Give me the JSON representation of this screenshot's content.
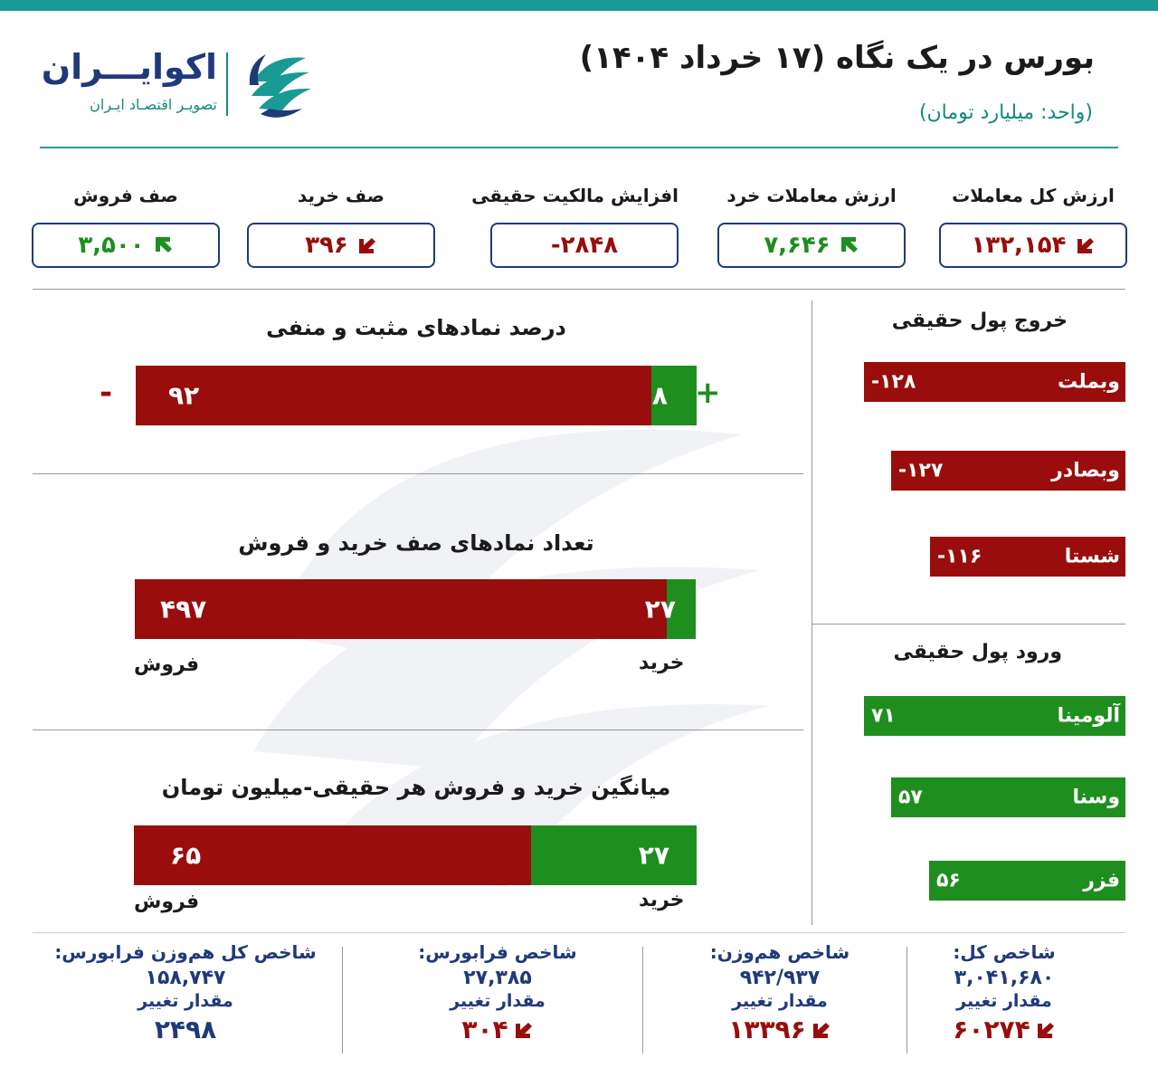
{
  "header": {
    "title": "بورس در یک نگاه (۱۷ خرداد ۱۴۰۴)",
    "unit": "(واحد: میلیارد تومان)"
  },
  "logo": {
    "name": "اکوایـــران",
    "subtitle": "تصویـر اقتصـاد ایـران"
  },
  "colors": {
    "teal": "#1a9a94",
    "navy": "#1f3a7a",
    "red": "#990d0d",
    "green": "#1e8e1e"
  },
  "kpis": [
    {
      "label": "ارزش کل معاملات",
      "value": "۱۳۲,۱۵۴",
      "trend": "down",
      "color": "#990d0d"
    },
    {
      "label": "ارزش معاملات خرد",
      "value": "۷,۶۴۶",
      "trend": "up",
      "color": "#1e8e1e"
    },
    {
      "label": "افزایش مالکیت حقیقی",
      "value": "-۲۸۴۸",
      "trend": "none",
      "color": "#990d0d"
    },
    {
      "label": "صف خرید",
      "value": "۳۹۶",
      "trend": "down",
      "color": "#990d0d"
    },
    {
      "label": "صف فروش",
      "value": "۳,۵۰۰",
      "trend": "up",
      "color": "#1e8e1e"
    }
  ],
  "positive_negative": {
    "title": "درصد نمادهای مثبت و منفی",
    "positive": 8,
    "negative": 92,
    "positive_label": "۸",
    "negative_label": "۹۲",
    "plus_sign": "+",
    "minus_sign": "-"
  },
  "queues": {
    "title": "تعداد نمادهای صف خرید و فروش",
    "buy": 27,
    "sell": 497,
    "buy_label": "۲۷",
    "sell_label": "۴۹۷",
    "buy_caption": "خرید",
    "sell_caption": "فروش"
  },
  "avg_trade": {
    "title": "میانگین خرید و فروش هر حقیقی-میلیون تومان",
    "buy": 27,
    "sell": 65,
    "buy_label": "۲۷",
    "sell_label": "۶۵",
    "buy_caption": "خرید",
    "sell_caption": "فروش"
  },
  "outflow": {
    "title": "خروج پول حقیقی",
    "items": [
      {
        "name": "وبملت",
        "value": -128,
        "label": "-۱۲۸"
      },
      {
        "name": "وبصادر",
        "value": -127,
        "label": "-۱۲۷"
      },
      {
        "name": "شستا",
        "value": -116,
        "label": "-۱۱۶"
      }
    ]
  },
  "inflow": {
    "title": "ورود پول حقیقی",
    "items": [
      {
        "name": "آلومینا",
        "value": 71,
        "label": "۷۱"
      },
      {
        "name": "وسنا",
        "value": 57,
        "label": "۵۷"
      },
      {
        "name": "فزر",
        "value": 56,
        "label": "۵۶"
      }
    ]
  },
  "indices": [
    {
      "name": "شاخص کل:",
      "value": "۳,۰۴۱,۶۸۰",
      "change_label": "مقدار تغییر",
      "change": "۶۰۲۷۴",
      "trend": "down",
      "color": "#990d0d"
    },
    {
      "name": "شاخص هم‌وزن:",
      "value": "۹۴۲/۹۳۷",
      "change_label": "مقدار تغییر",
      "change": "۱۳۳۹۶",
      "trend": "down",
      "color": "#990d0d"
    },
    {
      "name": "شاخص فرابورس:",
      "value": "۲۷,۳۸۵",
      "change_label": "مقدار تغییر",
      "change": "۳۰۴",
      "trend": "down",
      "color": "#990d0d"
    },
    {
      "name": "شاخص کل هم‌وزن فرابورس:",
      "value": "۱۵۸,۷۴۷",
      "change_label": "مقدار تغییر",
      "change": "۲۴۹۸",
      "trend": "none",
      "color": "#1f3a7a"
    }
  ]
}
